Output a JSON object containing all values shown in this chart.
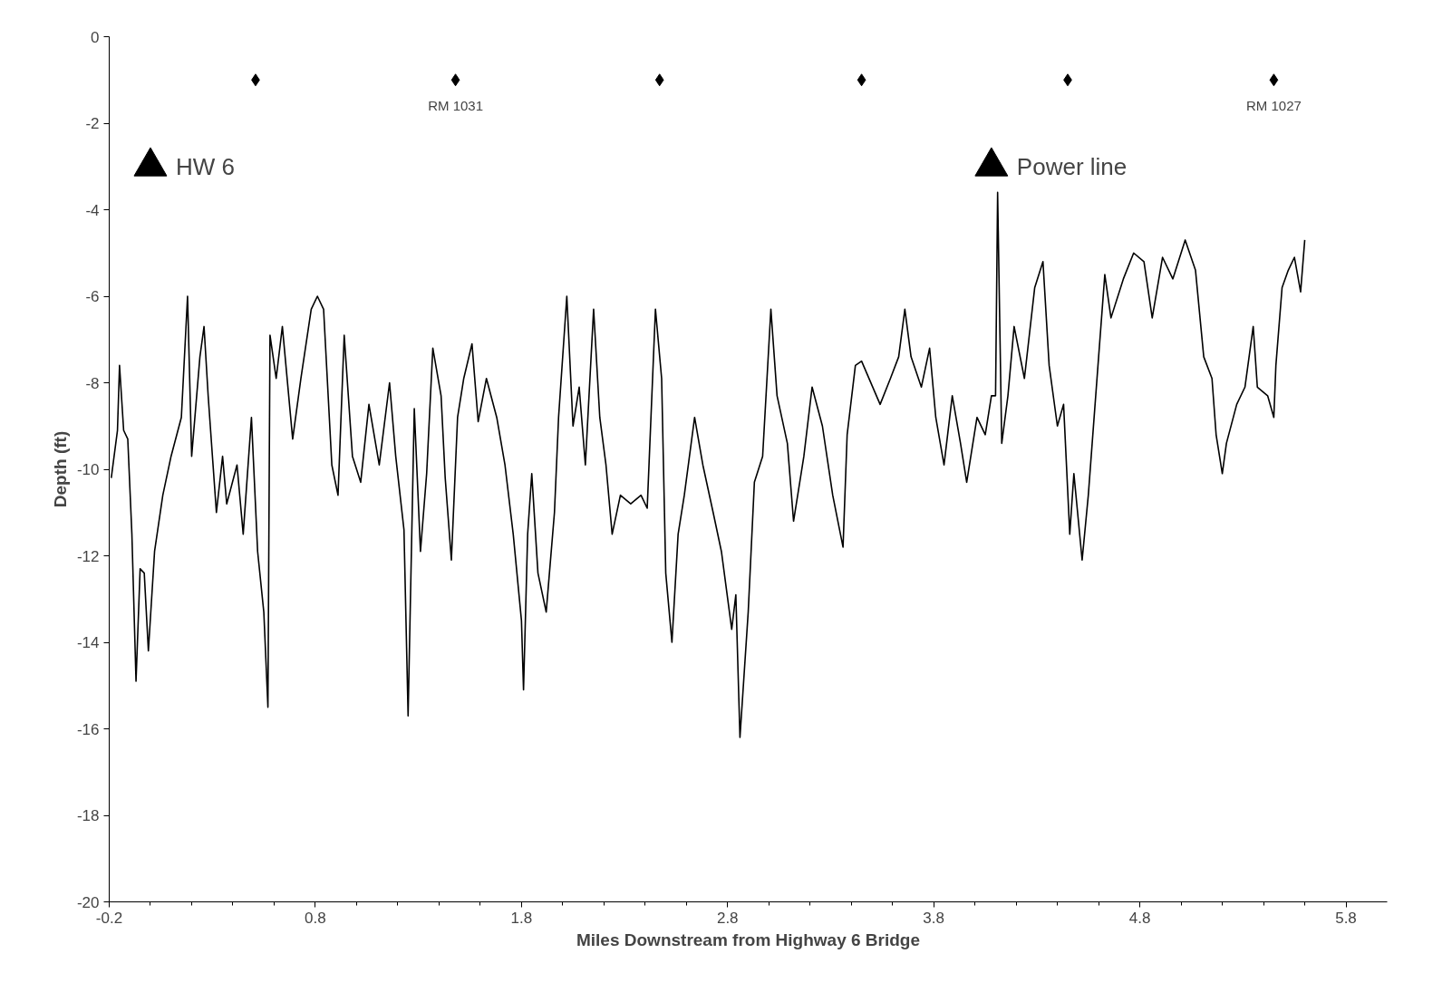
{
  "chart_data": {
    "type": "line",
    "xlabel": "Miles Downstream from Highway 6 Bridge",
    "ylabel": "Depth (ft)",
    "xlim": [
      -0.2,
      6.0
    ],
    "ylim": [
      -20,
      0
    ],
    "xticks": [
      -0.2,
      0.8,
      1.8,
      2.8,
      3.8,
      4.8,
      5.8
    ],
    "yticks": [
      0,
      -2,
      -4,
      -6,
      -8,
      -10,
      -12,
      -14,
      -16,
      -18,
      -20
    ],
    "grid": false,
    "series": [
      {
        "color": "#000000",
        "marker": "none",
        "x": [
          -0.19,
          -0.16,
          -0.15,
          -0.13,
          -0.11,
          -0.09,
          -0.07,
          -0.05,
          -0.03,
          -0.01,
          0.02,
          0.06,
          0.1,
          0.15,
          0.18,
          0.2,
          0.24,
          0.26,
          0.28,
          0.32,
          0.35,
          0.37,
          0.42,
          0.45,
          0.49,
          0.52,
          0.55,
          0.57,
          0.58,
          0.61,
          0.64,
          0.69,
          0.73,
          0.78,
          0.81,
          0.84,
          0.88,
          0.91,
          0.94,
          0.98,
          1.02,
          1.06,
          1.11,
          1.16,
          1.19,
          1.23,
          1.25,
          1.28,
          1.31,
          1.34,
          1.37,
          1.41,
          1.43,
          1.46,
          1.49,
          1.52,
          1.56,
          1.59,
          1.63,
          1.68,
          1.72,
          1.76,
          1.8,
          1.81,
          1.83,
          1.85,
          1.88,
          1.92,
          1.96,
          1.98,
          2.02,
          2.05,
          2.08,
          2.11,
          2.15,
          2.18,
          2.21,
          2.24,
          2.28,
          2.33,
          2.38,
          2.41,
          2.45,
          2.48,
          2.5,
          2.53,
          2.56,
          2.59,
          2.64,
          2.68,
          2.73,
          2.77,
          2.82,
          2.84,
          2.86,
          2.9,
          2.93,
          2.97,
          3.01,
          3.04,
          3.09,
          3.12,
          3.17,
          3.21,
          3.26,
          3.31,
          3.36,
          3.38,
          3.42,
          3.45,
          3.54,
          3.59,
          3.63,
          3.66,
          3.69,
          3.74,
          3.78,
          3.81,
          3.85,
          3.89,
          3.93,
          3.96,
          4.01,
          4.05,
          4.08,
          4.1,
          4.11,
          4.13,
          4.16,
          4.19,
          4.24,
          4.29,
          4.33,
          4.36,
          4.4,
          4.43,
          4.46,
          4.48,
          4.52,
          4.55,
          4.6,
          4.63,
          4.66,
          4.72,
          4.77,
          4.82,
          4.86,
          4.91,
          4.96,
          5.02,
          5.07,
          5.11,
          5.15,
          5.17,
          5.2,
          5.22,
          5.27,
          5.31,
          5.35,
          5.37,
          5.42,
          5.45,
          5.46,
          5.49,
          5.52,
          5.55,
          5.58,
          5.6
        ],
        "values": [
          -10.2,
          -9.1,
          -7.6,
          -9.1,
          -9.3,
          -11.5,
          -14.9,
          -12.3,
          -12.4,
          -14.2,
          -11.9,
          -10.6,
          -9.7,
          -8.8,
          -6.0,
          -9.7,
          -7.4,
          -6.7,
          -8.3,
          -11.0,
          -9.7,
          -10.8,
          -9.9,
          -11.5,
          -8.8,
          -11.9,
          -13.3,
          -15.5,
          -6.9,
          -7.9,
          -6.7,
          -9.3,
          -7.9,
          -6.3,
          -6.0,
          -6.3,
          -9.9,
          -10.6,
          -6.9,
          -9.7,
          -10.3,
          -8.5,
          -9.9,
          -8.0,
          -9.7,
          -11.4,
          -15.7,
          -8.6,
          -11.9,
          -10.1,
          -7.2,
          -8.3,
          -10.2,
          -12.1,
          -8.8,
          -7.9,
          -7.1,
          -8.9,
          -7.9,
          -8.8,
          -9.9,
          -11.5,
          -13.5,
          -15.1,
          -11.5,
          -10.1,
          -12.4,
          -13.3,
          -11.0,
          -8.8,
          -6.0,
          -9.0,
          -8.1,
          -9.9,
          -6.3,
          -8.8,
          -9.9,
          -11.5,
          -10.6,
          -10.8,
          -10.6,
          -10.9,
          -6.3,
          -7.9,
          -12.4,
          -14.0,
          -11.5,
          -10.6,
          -8.8,
          -9.9,
          -11.0,
          -11.9,
          -13.7,
          -12.9,
          -16.2,
          -13.3,
          -10.3,
          -9.7,
          -6.3,
          -8.3,
          -9.4,
          -11.2,
          -9.7,
          -8.1,
          -9.0,
          -10.6,
          -11.8,
          -9.2,
          -7.6,
          -7.5,
          -8.5,
          -7.9,
          -7.4,
          -6.3,
          -7.4,
          -8.1,
          -7.2,
          -8.8,
          -9.9,
          -8.3,
          -9.4,
          -10.3,
          -8.8,
          -9.2,
          -8.3,
          -8.3,
          -3.6,
          -9.4,
          -8.3,
          -6.7,
          -7.9,
          -5.8,
          -5.2,
          -7.6,
          -9.0,
          -8.5,
          -11.5,
          -10.1,
          -12.1,
          -10.6,
          -7.4,
          -5.5,
          -6.5,
          -5.6,
          -5.0,
          -5.2,
          -6.5,
          -5.1,
          -5.6,
          -4.7,
          -5.4,
          -7.4,
          -7.9,
          -9.2,
          -10.1,
          -9.4,
          -8.5,
          -8.1,
          -6.7,
          -8.1,
          -8.3,
          -8.8,
          -7.6,
          -5.8,
          -5.4,
          -5.1,
          -5.9,
          -4.7
        ]
      },
      {
        "type": "scatter",
        "color": "#000000",
        "marker": "diamond",
        "x": [
          0.51,
          1.48,
          2.47,
          3.45,
          4.45,
          5.45
        ],
        "values": [
          -1,
          -1,
          -1,
          -1,
          -1,
          -1
        ]
      },
      {
        "type": "scatter",
        "name": "HW 6",
        "color": "#000000",
        "marker": "triangle",
        "x": [
          0.0
        ],
        "values": [
          -3
        ]
      },
      {
        "type": "scatter",
        "name": "Power line",
        "color": "#000000",
        "marker": "triangle",
        "x": [
          4.08
        ],
        "values": [
          -3
        ]
      }
    ],
    "annotations": [
      {
        "text": "RM 1031",
        "x": 1.48,
        "y": -1
      },
      {
        "text": "RM 1027",
        "x": 5.45,
        "y": -1
      }
    ]
  }
}
